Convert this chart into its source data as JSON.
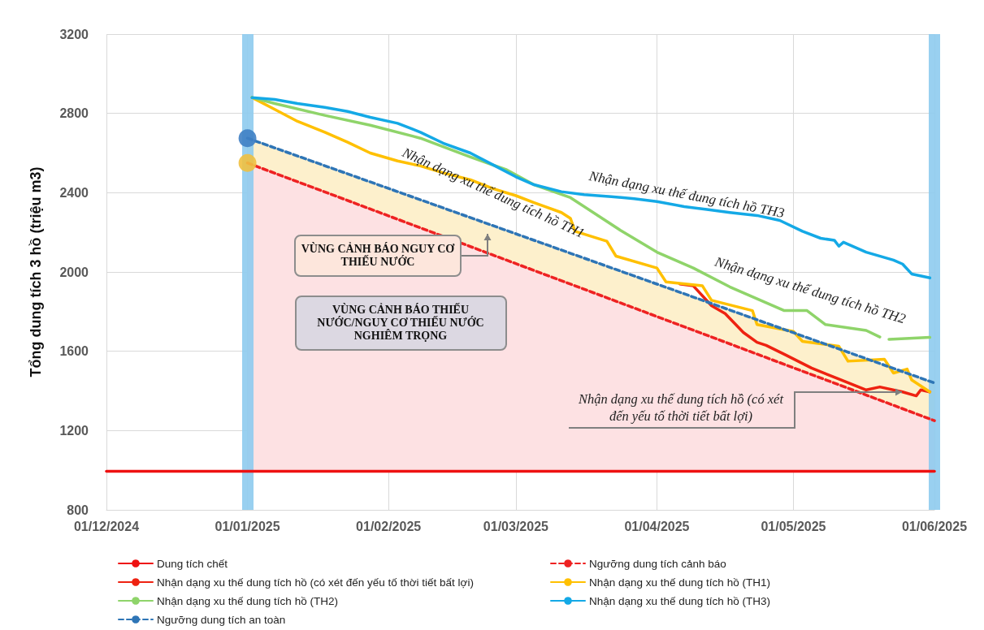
{
  "chart_data": {
    "type": "line",
    "ylabel": "Tổng dung tích 3 hồ (triệu m3)",
    "xlim": [
      "2024-12-01",
      "2025-06-01"
    ],
    "xticks": [
      {
        "value": "2024-12-01",
        "label": "01/12/2024"
      },
      {
        "value": "2025-01-01",
        "label": "01/01/2025"
      },
      {
        "value": "2025-02-01",
        "label": "01/02/2025"
      },
      {
        "value": "2025-03-01",
        "label": "01/03/2025"
      },
      {
        "value": "2025-04-01",
        "label": "01/04/2025"
      },
      {
        "value": "2025-05-01",
        "label": "01/05/2025"
      },
      {
        "value": "2025-06-01",
        "label": "01/06/2025"
      }
    ],
    "ylim": [
      800,
      3200
    ],
    "yticks": [
      800,
      1200,
      1600,
      2000,
      2400,
      2800,
      3200
    ],
    "grid": true,
    "legend": "bottom",
    "marker": "none",
    "series": [
      {
        "name": "Dung tích chết",
        "color": "#ee1111",
        "line_style": "solid",
        "x": [
          "2024-12-01",
          "2025-06-01"
        ],
        "values": [
          995,
          995
        ]
      },
      {
        "name": "Ngưỡng dung tích cảnh báo",
        "color": "#ee2222",
        "line_style": "dashed",
        "x": [
          "2025-01-01",
          "2025-06-01"
        ],
        "values": [
          2550,
          1250
        ],
        "lower": [
          995,
          995
        ],
        "upper": [
          2550,
          1250
        ]
      },
      {
        "name": "Nhận dạng xu thế dung tích hồ (có xét đến yếu tố thời tiết bất lợi)",
        "color": "#ee2211",
        "line_style": "solid",
        "x": [
          "2025-04-06",
          "2025-04-09",
          "2025-04-13",
          "2025-04-16",
          "2025-04-20",
          "2025-04-23",
          "2025-04-25",
          "2025-04-29",
          "2025-05-05",
          "2025-05-11",
          "2025-05-17",
          "2025-05-20",
          "2025-05-25",
          "2025-05-28",
          "2025-05-29",
          "2025-05-31"
        ],
        "values": [
          1940,
          1930,
          1830,
          1790,
          1695,
          1645,
          1630,
          1585,
          1515,
          1460,
          1405,
          1420,
          1395,
          1375,
          1405,
          1395
        ]
      },
      {
        "name": "Nhận dạng xu thế dung tích hồ (TH1)",
        "color": "#ffc000",
        "line_style": "solid",
        "x": [
          "2025-01-02",
          "2025-01-07",
          "2025-01-12",
          "2025-01-18",
          "2025-01-23",
          "2025-01-28",
          "2025-02-03",
          "2025-02-08",
          "2025-02-13",
          "2025-02-19",
          "2025-02-24",
          "2025-03-01",
          "2025-03-05",
          "2025-03-11",
          "2025-03-13",
          "2025-03-14",
          "2025-03-21",
          "2025-03-23",
          "2025-04-01",
          "2025-04-03",
          "2025-04-11",
          "2025-04-13",
          "2025-04-22",
          "2025-04-23",
          "2025-05-01",
          "2025-05-03",
          "2025-05-11",
          "2025-05-13",
          "2025-05-21",
          "2025-05-23",
          "2025-05-26",
          "2025-05-27",
          "2025-05-31"
        ],
        "values": [
          2880,
          2820,
          2760,
          2705,
          2655,
          2600,
          2560,
          2535,
          2500,
          2465,
          2420,
          2385,
          2350,
          2300,
          2270,
          2205,
          2155,
          2080,
          2020,
          1950,
          1930,
          1857,
          1805,
          1735,
          1700,
          1650,
          1625,
          1550,
          1560,
          1490,
          1510,
          1455,
          1395
        ]
      },
      {
        "name": "Nhận dạng xu thế dung tích hồ (TH2)",
        "color": "#8fd46a",
        "line_style": "solid",
        "x": [
          "2025-01-02",
          "2025-01-07",
          "2025-01-18",
          "2025-01-28",
          "2025-02-08",
          "2025-02-19",
          "2025-02-27",
          "2025-03-05",
          "2025-03-13",
          "2025-03-24",
          "2025-04-01",
          "2025-04-09",
          "2025-04-17",
          "2025-04-29",
          "2025-05-04",
          "2025-05-08",
          "2025-05-17",
          "2025-05-20",
          "2025-05-21",
          "2025-05-22",
          "2025-05-31"
        ],
        "values": [
          2880,
          2850,
          2790,
          2740,
          2675,
          2580,
          2515,
          2440,
          2375,
          2210,
          2100,
          2020,
          1925,
          1805,
          1805,
          1735,
          1705,
          1672,
          null,
          1660,
          1670
        ]
      },
      {
        "name": "Nhận dạng xu thế dung tích hồ (TH3)",
        "color": "#14a9e6",
        "line_style": "solid",
        "x": [
          "2025-01-02",
          "2025-01-07",
          "2025-01-12",
          "2025-01-18",
          "2025-01-23",
          "2025-01-28",
          "2025-02-03",
          "2025-02-08",
          "2025-02-13",
          "2025-02-19",
          "2025-02-24",
          "2025-03-01",
          "2025-03-05",
          "2025-03-11",
          "2025-03-16",
          "2025-03-22",
          "2025-03-27",
          "2025-04-01",
          "2025-04-07",
          "2025-04-12",
          "2025-04-17",
          "2025-04-23",
          "2025-04-28",
          "2025-05-03",
          "2025-05-07",
          "2025-05-10",
          "2025-05-11",
          "2025-05-12",
          "2025-05-17",
          "2025-05-23",
          "2025-05-25",
          "2025-05-27",
          "2025-05-31"
        ],
        "values": [
          2880,
          2870,
          2850,
          2830,
          2810,
          2780,
          2750,
          2705,
          2650,
          2600,
          2540,
          2480,
          2440,
          2405,
          2390,
          2380,
          2370,
          2355,
          2330,
          2315,
          2300,
          2285,
          2260,
          2205,
          2170,
          2160,
          2130,
          2150,
          2100,
          2060,
          2040,
          1990,
          1970
        ]
      },
      {
        "name": "Ngưỡng dung tích an toàn",
        "color": "#2e75b6",
        "line_style": "dashed",
        "x": [
          "2025-01-01",
          "2025-06-01"
        ],
        "values": [
          2675,
          1440
        ],
        "lower": [
          2550,
          1250
        ],
        "upper": [
          2675,
          1440
        ]
      },
      {
        "type": "scatter",
        "marker": "circle",
        "color": "#3f7fc4",
        "x": [
          "2025-01-01"
        ],
        "values": [
          2675
        ]
      },
      {
        "type": "scatter",
        "marker": "circle",
        "color": "#f0c040",
        "x": [
          "2025-01-01"
        ],
        "values": [
          2550
        ]
      }
    ],
    "ref_lines": [
      {
        "axis": "x",
        "value": "2025-01-01",
        "color": "#8ecbee"
      },
      {
        "axis": "x",
        "value": "2025-06-01",
        "color": "#8ecbee"
      }
    ],
    "annotations": [
      {
        "text": "Nhận dạng xu thế dung tích hồ TH1",
        "x": "2025-02-24",
        "y": 2397
      },
      "Nhận dạng xu thế dung tích hồ TH3",
      "Nhận dạng xu thế dung tích hồ TH2",
      "VÙNG CẢNH BÁO NGUY CƠ THIẾU NƯỚC",
      "VÙNG CẢNH BÁO THIẾU NƯỚC/NGUY CƠ THIẾU NƯỚC NGHIÊM TRỌNG",
      "Nhận dạng xu thế dung tích hồ (có xét đến yếu tố thời tiết bất lợi)"
    ]
  }
}
